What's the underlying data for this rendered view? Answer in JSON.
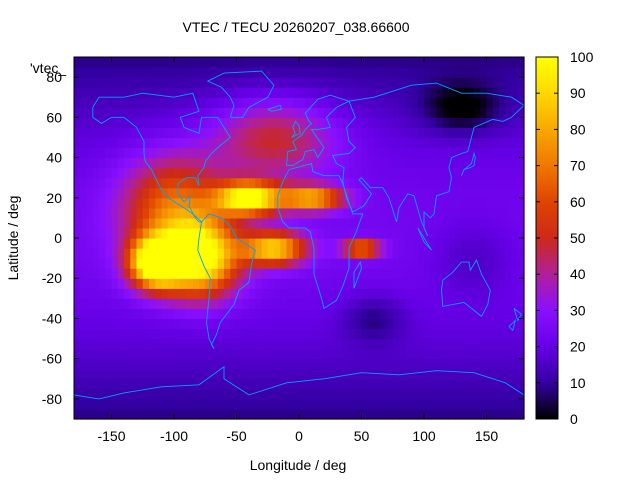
{
  "chart_data": {
    "type": "heatmap",
    "title": "VTEC / TECU 20260207_038.66600",
    "xlabel": "Longitude / deg",
    "ylabel": "Latitude / deg",
    "xlim": [
      -180,
      180
    ],
    "ylim": [
      -90,
      90
    ],
    "xticks": [
      -150,
      -100,
      -50,
      0,
      50,
      100,
      150
    ],
    "yticks": [
      -80,
      -60,
      -40,
      -20,
      0,
      20,
      40,
      60,
      80
    ],
    "colorbar": {
      "min": 0,
      "max": 100,
      "ticks": [
        0,
        10,
        20,
        30,
        40,
        50,
        60,
        70,
        80,
        90,
        100
      ],
      "palette": [
        "#000000",
        "#3300a0",
        "#6600e6",
        "#8a10ff",
        "#b0209a",
        "#cc2a18",
        "#e04400",
        "#f07800",
        "#f8a800",
        "#ffd800",
        "#ffff00"
      ]
    },
    "series_label": "'vtec_",
    "coastline_color": "#00a0ff",
    "anomaly": {
      "peak_value": 92,
      "peak_center": [
        -110,
        -15
      ],
      "background": [
        8,
        24
      ],
      "features": [
        {
          "lon": -115,
          "lat": -12,
          "value": 90,
          "spread_lon": 20,
          "spread_lat": 12
        },
        {
          "lon": -80,
          "lat": -10,
          "value": 80,
          "spread_lon": 30,
          "spread_lat": 18
        },
        {
          "lon": -40,
          "lat": 20,
          "value": 82,
          "spread_lon": 25,
          "spread_lat": 8
        },
        {
          "lon": 10,
          "lat": 20,
          "value": 60,
          "spread_lon": 25,
          "spread_lat": 6
        },
        {
          "lon": -20,
          "lat": -5,
          "value": 66,
          "spread_lon": 25,
          "spread_lat": 8
        },
        {
          "lon": 50,
          "lat": -5,
          "value": 55,
          "spread_lon": 15,
          "spread_lat": 4
        },
        {
          "lon": -100,
          "lat": 15,
          "value": 45,
          "spread_lon": 40,
          "spread_lat": 25
        },
        {
          "lon": -20,
          "lat": 50,
          "value": 30,
          "spread_lon": 50,
          "spread_lat": 20
        },
        {
          "lon": 130,
          "lat": 65,
          "value": -18,
          "spread_lon": 30,
          "spread_lat": 12
        },
        {
          "lon": 60,
          "lat": -40,
          "value": -12,
          "spread_lon": 25,
          "spread_lat": 12
        },
        {
          "lon": 140,
          "lat": -10,
          "value": -8,
          "spread_lon": 35,
          "spread_lat": 20
        }
      ]
    }
  }
}
